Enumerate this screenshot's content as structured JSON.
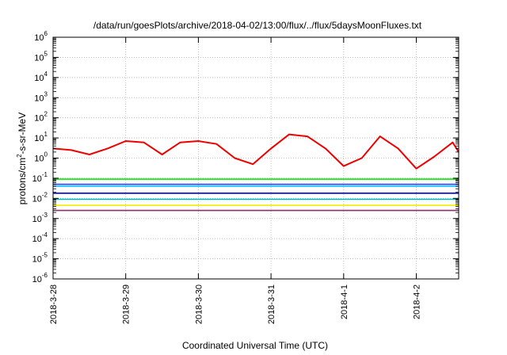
{
  "chart_data": {
    "type": "line",
    "title": "/data/run/goesPlots/archive/2018-04-02/13:00/flux/../flux/5daysMoonFluxes.txt",
    "xlabel": "Coordinated Universal Time (UTC)",
    "ylabel": "protons/cm2-s-sr-MeV",
    "ylabel_main": "protons/cm",
    "ylabel_sup": "2",
    "ylabel_tail": "-s-sr-MeV",
    "y_scale": "log",
    "ylim_exponent": [
      -6,
      6
    ],
    "y_tick_exponents": [
      -6,
      -5,
      -4,
      -3,
      -2,
      -1,
      0,
      1,
      2,
      3,
      4,
      5,
      6
    ],
    "y_tick_base": "10",
    "xlim": [
      "2018-03-28T00:00",
      "2018-04-02T14:00"
    ],
    "x_tick_labels": [
      "2018-3-28",
      "2018-3-29",
      "2018-3-30",
      "2018-3-31",
      "2018-4-1",
      "2018-4-2"
    ],
    "grid": true,
    "legend": "none",
    "series": [
      {
        "color": "#ee0000",
        "x": [
          "2018-03-28T00:00",
          "2018-03-28T06:00",
          "2018-03-28T12:00",
          "2018-03-28T18:00",
          "2018-03-29T00:00",
          "2018-03-29T06:00",
          "2018-03-29T12:00",
          "2018-03-29T18:00",
          "2018-03-30T00:00",
          "2018-03-30T06:00",
          "2018-03-30T12:00",
          "2018-03-30T18:00",
          "2018-03-31T00:00",
          "2018-03-31T06:00",
          "2018-03-31T12:00",
          "2018-03-31T18:00",
          "2018-04-01T00:00",
          "2018-04-01T06:00",
          "2018-04-01T12:00",
          "2018-04-01T18:00",
          "2018-04-02T00:00",
          "2018-04-02T06:00",
          "2018-04-02T12:00",
          "2018-04-02T14:00"
        ],
        "y": [
          3,
          2.5,
          1.5,
          3,
          7,
          6,
          1.5,
          6,
          7,
          5,
          1,
          0.5,
          3,
          15,
          12,
          3,
          0.4,
          1,
          12,
          3,
          0.3,
          1.2,
          6,
          2
        ]
      },
      {
        "color": "#00ee00",
        "x": [
          "2018-03-28T00:00",
          "2018-04-02T14:00"
        ],
        "y": [
          0.09,
          0.09
        ]
      },
      {
        "color": "#00bbff",
        "x": [
          "2018-03-28T00:00",
          "2018-04-02T14:00"
        ],
        "y": [
          0.04,
          0.04
        ]
      },
      {
        "color": "#2244ff",
        "x": [
          "2018-03-28T00:00",
          "2018-04-02T14:00"
        ],
        "y": [
          0.05,
          0.05
        ]
      },
      {
        "color": "#0000cc",
        "x": [
          "2018-03-28T00:00",
          "2018-04-02T14:00"
        ],
        "y": [
          0.018,
          0.018
        ]
      },
      {
        "color": "#00bbbb",
        "x": [
          "2018-03-28T00:00",
          "2018-04-02T14:00"
        ],
        "y": [
          0.009,
          0.009
        ]
      },
      {
        "color": "#eeee00",
        "x": [
          "2018-03-28T00:00",
          "2018-04-02T14:00"
        ],
        "y": [
          0.0045,
          0.0045
        ]
      },
      {
        "color": "#883366",
        "x": [
          "2018-03-28T00:00",
          "2018-04-02T14:00"
        ],
        "y": [
          0.0025,
          0.0025
        ]
      }
    ]
  }
}
